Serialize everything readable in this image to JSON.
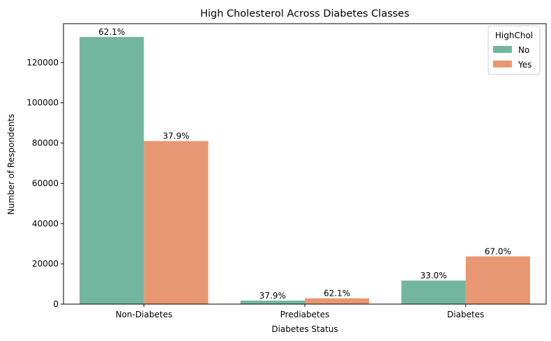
{
  "chart_data": {
    "type": "bar",
    "title": "High Cholesterol Across Diabetes Classes",
    "xlabel": "Diabetes Status",
    "ylabel": "Number of Respondents",
    "categories": [
      "Non-Diabetes",
      "Prediabetes",
      "Diabetes"
    ],
    "series": [
      {
        "name": "No",
        "color": "#73b6a0",
        "values": [
          132700,
          1750,
          11700
        ],
        "labels": [
          "62.1%",
          "37.9%",
          "33.0%"
        ]
      },
      {
        "name": "Yes",
        "color": "#e89773",
        "values": [
          81000,
          2880,
          23700
        ],
        "labels": [
          "37.9%",
          "62.1%",
          "67.0%"
        ]
      }
    ],
    "ylim": [
      0,
      139300
    ],
    "yticks": [
      0,
      20000,
      40000,
      60000,
      80000,
      100000,
      120000
    ],
    "legend": {
      "title": "HighChol",
      "position": "top-right"
    },
    "grid": false
  }
}
